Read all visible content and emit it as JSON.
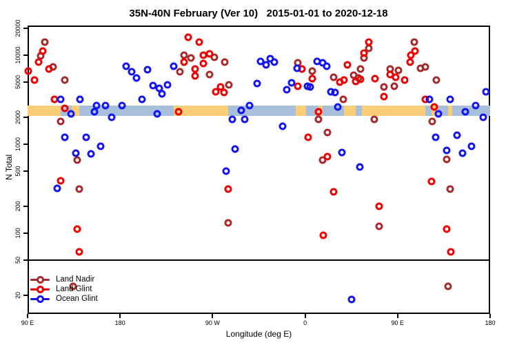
{
  "title": "35N-40N February (Ver 10)   2015-01-01 to 2020-12-18",
  "axes": {
    "x": {
      "label": "Longitude (deg E)",
      "min": 90,
      "max": 540,
      "ticks": [
        {
          "v": 90,
          "label": "90 E"
        },
        {
          "v": 180,
          "label": "180"
        },
        {
          "v": 270,
          "label": "90 W"
        },
        {
          "v": 360,
          "label": "0"
        },
        {
          "v": 450,
          "label": "90 E"
        },
        {
          "v": 540,
          "label": "180"
        }
      ]
    },
    "y": {
      "label": "N Total",
      "scale": "log",
      "ticks": [
        20000,
        10000,
        5000,
        2000,
        1000,
        500,
        200,
        100,
        50,
        20
      ]
    }
  },
  "legend": {
    "items": [
      {
        "label": "Land Nadir",
        "color": "#A52A2A"
      },
      {
        "label": "Land Glint",
        "color": "#EE0000"
      },
      {
        "label": "Ocean Glint",
        "color": "#1414F0"
      }
    ]
  },
  "chart_data": {
    "type": "scatter",
    "xlabel": "Longitude (deg E)",
    "ylabel": "N Total",
    "x_axis_degrees": [
      90,
      540
    ],
    "y_log_range": [
      14,
      22000
    ],
    "reference_line": {
      "value": 50,
      "color": "#000000"
    },
    "surface_band": {
      "n_top": 2700,
      "n_bottom": 2080,
      "land_color": "#F9CE76",
      "ocean_color": "#A8BFDC",
      "segments": [
        {
          "from": 90,
          "to": 122,
          "type": "land"
        },
        {
          "from": 122,
          "to": 133,
          "type": "ocean"
        },
        {
          "from": 133,
          "to": 140,
          "type": "land"
        },
        {
          "from": 140,
          "to": 232,
          "type": "ocean"
        },
        {
          "from": 232,
          "to": 285,
          "type": "land"
        },
        {
          "from": 285,
          "to": 351,
          "type": "ocean"
        },
        {
          "from": 351,
          "to": 361,
          "type": "land"
        },
        {
          "from": 361,
          "to": 373,
          "type": "ocean"
        },
        {
          "from": 373,
          "to": 377,
          "type": "land"
        },
        {
          "from": 377,
          "to": 398,
          "type": "ocean"
        },
        {
          "from": 398,
          "to": 409,
          "type": "land"
        },
        {
          "from": 409,
          "to": 415,
          "type": "ocean"
        },
        {
          "from": 415,
          "to": 477,
          "type": "land"
        },
        {
          "from": 477,
          "to": 483,
          "type": "ocean"
        },
        {
          "from": 483,
          "to": 489,
          "type": "land"
        },
        {
          "from": 489,
          "to": 499,
          "type": "ocean"
        },
        {
          "from": 499,
          "to": 503,
          "type": "land"
        },
        {
          "from": 503,
          "to": 540,
          "type": "ocean"
        }
      ]
    },
    "series": [
      {
        "name": "Land Nadir",
        "color": "#A52A2A",
        "points": [
          [
            107,
            14000
          ],
          [
            103,
            9800
          ],
          [
            115,
            7400
          ],
          [
            126,
            5200
          ],
          [
            122,
            1800
          ],
          [
            138,
            660
          ],
          [
            140,
            310
          ],
          [
            134,
            25
          ],
          [
            242,
            9900
          ],
          [
            249,
            9300
          ],
          [
            272,
            9500
          ],
          [
            282,
            8400
          ],
          [
            238,
            6500
          ],
          [
            267,
            6100
          ],
          [
            286,
            4600
          ],
          [
            285,
            130
          ],
          [
            353,
            8200
          ],
          [
            367,
            6600
          ],
          [
            373,
            1900
          ],
          [
            382,
            1350
          ],
          [
            377,
            660
          ],
          [
            397,
            3200
          ],
          [
            388,
            5600
          ],
          [
            407,
            5900
          ],
          [
            412,
            5500
          ],
          [
            414,
            7000
          ],
          [
            417,
            9300
          ],
          [
            422,
            12000
          ],
          [
            427,
            1900
          ],
          [
            432,
            120
          ],
          [
            437,
            4400
          ],
          [
            443,
            7000
          ],
          [
            447,
            4500
          ],
          [
            451,
            6700
          ],
          [
            466,
            14000
          ],
          [
            472,
            7100
          ],
          [
            477,
            7300
          ],
          [
            484,
            1800
          ],
          [
            488,
            5200
          ],
          [
            498,
            670
          ],
          [
            501,
            310
          ],
          [
            499,
            25
          ]
        ]
      },
      {
        "name": "Land Glint",
        "color": "#EE0000",
        "points": [
          [
            105,
            11000
          ],
          [
            101,
            8400
          ],
          [
            111,
            7000
          ],
          [
            91,
            6600
          ],
          [
            97,
            5200
          ],
          [
            116,
            3200
          ],
          [
            126,
            2500
          ],
          [
            122,
            390
          ],
          [
            138,
            110
          ],
          [
            140,
            62
          ],
          [
            246,
            16000
          ],
          [
            257,
            14000
          ],
          [
            261,
            10000
          ],
          [
            267,
            10300
          ],
          [
            242,
            8400
          ],
          [
            261,
            8100
          ],
          [
            253,
            7000
          ],
          [
            253,
            5800
          ],
          [
            273,
            3900
          ],
          [
            278,
            4400
          ],
          [
            281,
            3800
          ],
          [
            237,
            2300
          ],
          [
            285,
            310
          ],
          [
            357,
            7000
          ],
          [
            367,
            5400
          ],
          [
            353,
            4500
          ],
          [
            363,
            1200
          ],
          [
            373,
            2300
          ],
          [
            382,
            720
          ],
          [
            388,
            290
          ],
          [
            378,
            95
          ],
          [
            401,
            7800
          ],
          [
            394,
            5000
          ],
          [
            398,
            5200
          ],
          [
            409,
            5100
          ],
          [
            414,
            5300
          ],
          [
            417,
            10500
          ],
          [
            422,
            14000
          ],
          [
            428,
            5400
          ],
          [
            437,
            3400
          ],
          [
            443,
            6100
          ],
          [
            448,
            5600
          ],
          [
            457,
            5200
          ],
          [
            467,
            11000
          ],
          [
            463,
            9900
          ],
          [
            462,
            8400
          ],
          [
            477,
            3200
          ],
          [
            483,
            380
          ],
          [
            486,
            2600
          ],
          [
            432,
            200
          ],
          [
            498,
            110
          ],
          [
            502,
            62
          ]
        ]
      },
      {
        "name": "Ocean Glint",
        "color": "#1414F0",
        "points": [
          [
            122,
            3200
          ],
          [
            141,
            3200
          ],
          [
            132,
            2200
          ],
          [
            155,
            2300
          ],
          [
            126,
            1200
          ],
          [
            147,
            1200
          ],
          [
            161,
            950
          ],
          [
            137,
            790
          ],
          [
            152,
            780
          ],
          [
            119,
            320
          ],
          [
            186,
            7500
          ],
          [
            191,
            6500
          ],
          [
            196,
            5500
          ],
          [
            207,
            6800
          ],
          [
            212,
            4550
          ],
          [
            218,
            4200
          ],
          [
            226,
            4600
          ],
          [
            221,
            3700
          ],
          [
            201,
            3200
          ],
          [
            232,
            7500
          ],
          [
            216,
            2200
          ],
          [
            172,
            2000
          ],
          [
            182,
            2700
          ],
          [
            166,
            2700
          ],
          [
            157,
            2700
          ],
          [
            283,
            500
          ],
          [
            292,
            880
          ],
          [
            289,
            1900
          ],
          [
            301,
            1900
          ],
          [
            298,
            2400
          ],
          [
            306,
            2700
          ],
          [
            317,
            8500
          ],
          [
            322,
            7700
          ],
          [
            326,
            9100
          ],
          [
            330,
            8400
          ],
          [
            313,
            4800
          ],
          [
            338,
            1600
          ],
          [
            352,
            7100
          ],
          [
            347,
            4900
          ],
          [
            342,
            4100
          ],
          [
            362,
            4500
          ],
          [
            365,
            4400
          ],
          [
            372,
            8500
          ],
          [
            377,
            8200
          ],
          [
            381,
            7500
          ],
          [
            385,
            3900
          ],
          [
            389,
            3800
          ],
          [
            392,
            2600
          ],
          [
            396,
            800
          ],
          [
            413,
            550
          ],
          [
            405,
            18
          ],
          [
            481,
            3200
          ],
          [
            501,
            3200
          ],
          [
            487,
            1200
          ],
          [
            508,
            1250
          ],
          [
            498,
            850
          ],
          [
            513,
            790
          ],
          [
            522,
            950
          ],
          [
            490,
            2200
          ],
          [
            516,
            2300
          ],
          [
            526,
            2700
          ],
          [
            536,
            3900
          ],
          [
            533,
            2000
          ]
        ]
      }
    ]
  }
}
